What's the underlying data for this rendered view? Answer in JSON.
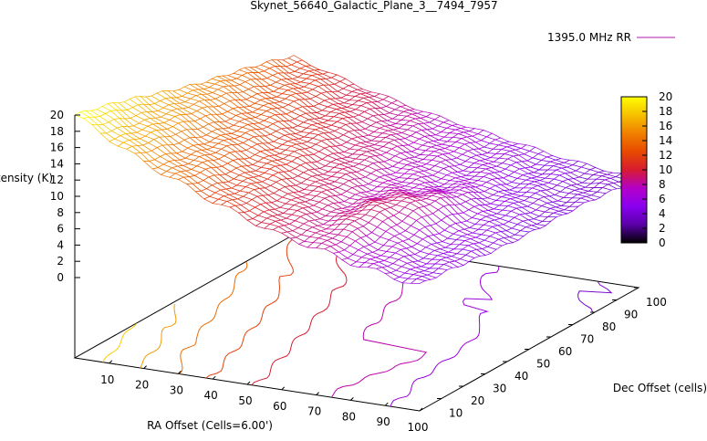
{
  "chart_data": {
    "type": "surface3d",
    "title": "Skynet_56640_Galactic_Plane_3__7494_7957",
    "legend": {
      "label": "1395.0 MHz RR",
      "position": "top-right"
    },
    "xlabel": "RA Offset (Cells=6.00')",
    "ylabel": "Dec Offset (cells)",
    "zlabel": "Intensity (K)",
    "x_ticks": [
      10,
      20,
      30,
      40,
      50,
      60,
      70,
      80,
      90,
      100
    ],
    "y_ticks": [
      10,
      20,
      30,
      40,
      50,
      60,
      70,
      80,
      90,
      100
    ],
    "z_ticks": [
      0,
      2,
      4,
      6,
      8,
      10,
      12,
      14,
      16,
      18,
      20
    ],
    "xlim": [
      0,
      100
    ],
    "ylim": [
      0,
      100
    ],
    "zlim": [
      0,
      20
    ],
    "colorbar": {
      "ticks": [
        0,
        2,
        4,
        6,
        8,
        10,
        12,
        14,
        16,
        18,
        20
      ],
      "range": [
        0,
        20
      ],
      "palette": [
        "#000000",
        "#5a00a8",
        "#8a00f0",
        "#b400c8",
        "#d81b30",
        "#e84a00",
        "#f08000",
        "#f6c000",
        "#ffff00"
      ]
    },
    "contour_levels": [
      4,
      6,
      8,
      10,
      12,
      14,
      16,
      18
    ],
    "surface_samples": {
      "x": [
        0,
        20,
        40,
        60,
        80,
        100
      ],
      "y": [
        0,
        20,
        40,
        60,
        80,
        100
      ],
      "z_at_y0": [
        20,
        15.5,
        12,
        9,
        7,
        5.5
      ],
      "z_at_y100": [
        12,
        9.5,
        7.5,
        6,
        4.5,
        3.5
      ]
    }
  }
}
